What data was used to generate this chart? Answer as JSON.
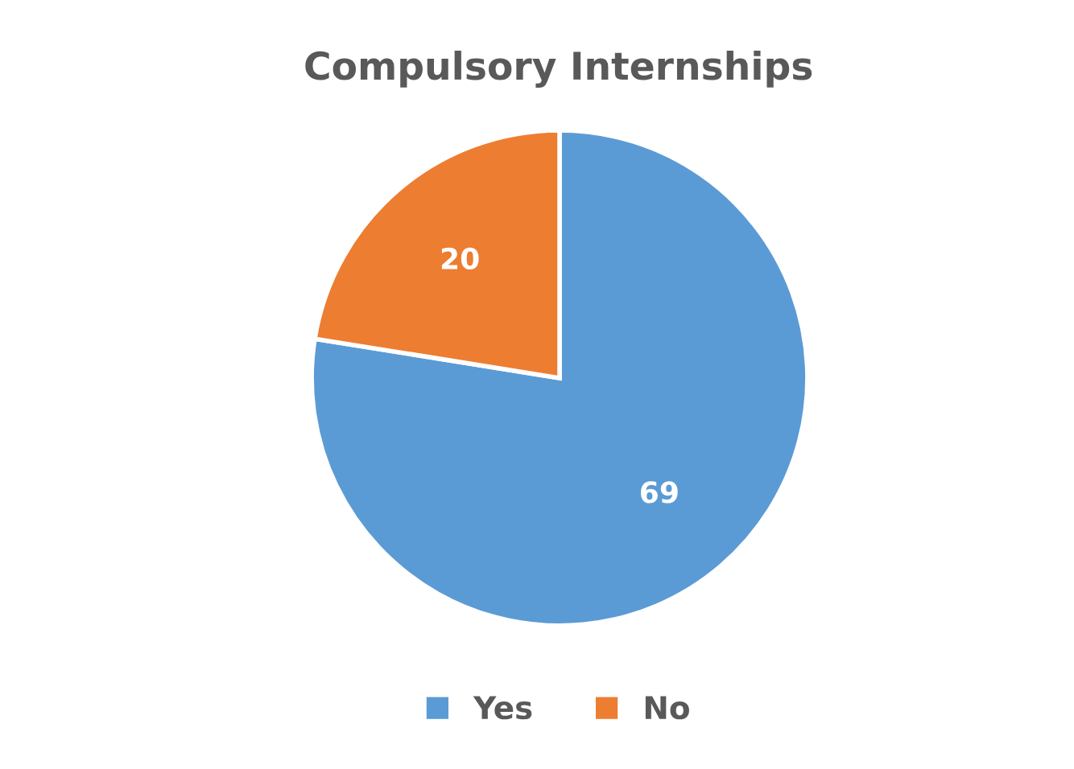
{
  "chart_data": {
    "type": "pie",
    "title": "Compulsory Internships",
    "categories": [
      "Yes",
      "No"
    ],
    "values": [
      69,
      20
    ],
    "colors": [
      "#5b9bd5",
      "#ed7d31"
    ],
    "data_labels": true,
    "legend": "bottom"
  }
}
